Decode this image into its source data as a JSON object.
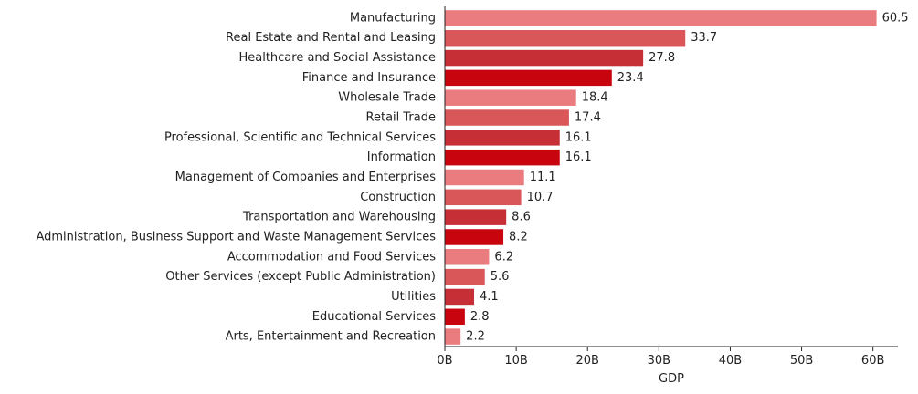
{
  "chart_data": {
    "type": "bar",
    "orientation": "horizontal",
    "title": "",
    "xlabel": "GDP",
    "ylabel": "",
    "xlim": [
      0,
      63.5
    ],
    "x_ticks": [
      {
        "value": 0,
        "label": "0B"
      },
      {
        "value": 10,
        "label": "10B"
      },
      {
        "value": 20,
        "label": "20B"
      },
      {
        "value": 30,
        "label": "30B"
      },
      {
        "value": 40,
        "label": "40B"
      },
      {
        "value": 50,
        "label": "50B"
      },
      {
        "value": 60,
        "label": "60B"
      }
    ],
    "grid": false,
    "categories": [
      "Manufacturing",
      "Real Estate and Rental and Leasing",
      "Healthcare and Social Assistance",
      "Finance and Insurance",
      "Wholesale Trade",
      "Retail Trade",
      "Professional, Scientific and Technical Services",
      "Information",
      "Management of Companies and Enterprises",
      "Construction",
      "Transportation and Warehousing",
      "Administration, Business Support and Waste Management Services",
      "Accommodation and Food Services",
      "Other Services (except Public Administration)",
      "Utilities",
      "Educational Services",
      "Arts, Entertainment and Recreation"
    ],
    "values": [
      60.5,
      33.7,
      27.8,
      23.4,
      18.4,
      17.4,
      16.1,
      16.1,
      11.1,
      10.7,
      8.6,
      8.2,
      6.2,
      5.6,
      4.1,
      2.8,
      2.2
    ],
    "value_labels": [
      "60.5",
      "33.7",
      "27.8",
      "23.4",
      "18.4",
      "17.4",
      "16.1",
      "16.1",
      "11.1",
      "10.7",
      "8.6",
      "8.2",
      "6.2",
      "5.6",
      "4.1",
      "2.8",
      "2.2"
    ],
    "bar_colors": [
      "#ea7b7e",
      "#d95759",
      "#c52f35",
      "#c8050f"
    ]
  }
}
